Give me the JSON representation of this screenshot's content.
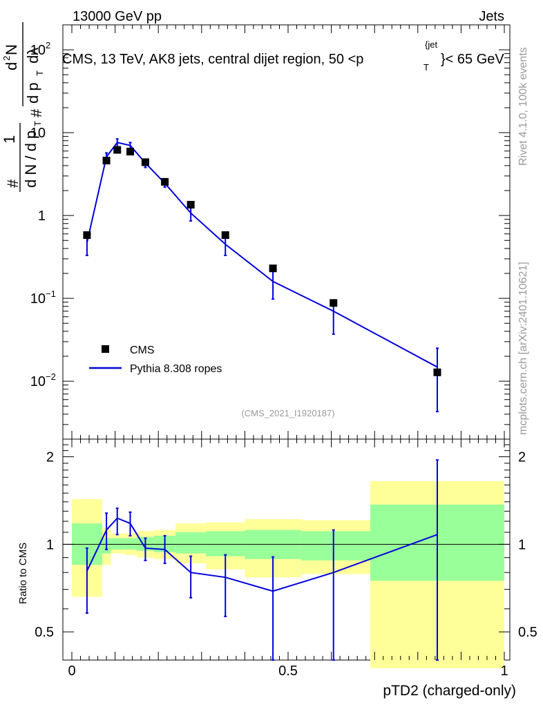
{
  "header": {
    "left": "13000 GeV pp",
    "right": "Jets"
  },
  "side": {
    "version": "Rivet 4.1.0,  100k events",
    "source": "mcplots.cern.ch [arXiv:2401.10621]"
  },
  "colors": {
    "data": "#000000",
    "mc": "#0000dd",
    "band_inner": "#99ff99",
    "band_outer": "#ffff99",
    "watermark": "#999999"
  },
  "chart_data": {
    "type": "line",
    "title": "CMS, 13 TeV, AK8 jets, central dijet region, 50 <p_T^{jet}< 65 GeV",
    "title_main": "CMS, 13 TeV, AK8 jets, central dijet region, 50 <p",
    "title_sub": "T",
    "title_sup": "{jet",
    "title_tail": "}< 65 GeV",
    "analysis": "(CMS_2021_I1920187)",
    "xlabel": "pTD2 (charged-only)",
    "ylabel": "# 1 / dN / dp_T # d^2N / dp_T dλ",
    "ylabel_parts": {
      "hash_left": "#",
      "one": "1",
      "den": "d N / d p",
      "t1": "T",
      "hash_right": "#",
      "num": "d",
      "two": "2",
      "n": "N",
      "den2": "d p",
      "t2": "T",
      "lam": "dλ"
    },
    "ratio_label": "Ratio to CMS",
    "xlim": [
      0,
      1
    ],
    "ylim_main": [
      0.002,
      200
    ],
    "ylim_ratio": [
      0.4,
      2.3
    ],
    "x_ticks": [
      {
        "v": 0,
        "label": "0"
      },
      {
        "v": 0.5,
        "label": "0.5"
      },
      {
        "v": 1,
        "label": "1"
      }
    ],
    "y_main_ticks": [
      {
        "v": 0.01,
        "label": "10",
        "exp": "−2"
      },
      {
        "v": 0.1,
        "label": "10",
        "exp": "−1"
      },
      {
        "v": 1,
        "label": "1",
        "exp": ""
      },
      {
        "v": 10,
        "label": "10",
        "exp": ""
      },
      {
        "v": 100,
        "label": "10",
        "exp": "2"
      }
    ],
    "y_ratio_ticks": [
      {
        "v": 0.5,
        "label": "0.5"
      },
      {
        "v": 1,
        "label": "1"
      },
      {
        "v": 2,
        "label": "2"
      }
    ],
    "legend": [
      {
        "name": "CMS",
        "marker": "square"
      },
      {
        "name": "Pythia 8.308 ropes",
        "marker": "line"
      }
    ],
    "bin_edges": [
      0,
      0.07,
      0.09,
      0.12,
      0.15,
      0.19,
      0.24,
      0.31,
      0.4,
      0.53,
      0.69,
      1.0
    ],
    "data": {
      "x": [
        0.035,
        0.08,
        0.105,
        0.135,
        0.17,
        0.215,
        0.275,
        0.355,
        0.465,
        0.605,
        0.845
      ],
      "y": [
        0.58,
        4.6,
        6.2,
        5.9,
        4.4,
        2.55,
        1.35,
        0.58,
        0.23,
        0.088,
        0.0128
      ]
    },
    "mc": {
      "x": [
        0.035,
        0.08,
        0.105,
        0.135,
        0.17,
        0.215,
        0.275,
        0.355,
        0.465,
        0.605,
        0.845
      ],
      "y": [
        0.47,
        5.1,
        7.6,
        7.0,
        4.3,
        2.45,
        1.07,
        0.45,
        0.16,
        0.07,
        0.0148
      ],
      "err_low": [
        0.33,
        4.4,
        6.6,
        6.2,
        3.8,
        2.2,
        0.86,
        0.33,
        0.098,
        0.037,
        0.0043
      ],
      "err_high": [
        0.58,
        5.7,
        8.4,
        7.6,
        4.7,
        2.75,
        1.28,
        0.57,
        0.22,
        0.095,
        0.025
      ]
    },
    "ratio": {
      "y": [
        0.81,
        1.12,
        1.23,
        1.18,
        0.97,
        0.96,
        0.8,
        0.77,
        0.69,
        0.8,
        1.08
      ],
      "err_low": [
        0.58,
        0.96,
        1.08,
        1.07,
        0.88,
        0.86,
        0.655,
        0.565,
        0.37,
        0.365,
        0.34
      ],
      "err_high": [
        0.97,
        1.28,
        1.33,
        1.29,
        1.05,
        1.07,
        0.91,
        0.92,
        0.905,
        1.12,
        1.95
      ]
    },
    "band_outer": {
      "low": [
        0.66,
        0.85,
        0.93,
        0.92,
        0.9,
        0.89,
        0.86,
        0.82,
        0.77,
        0.79,
        0.375
      ],
      "high": [
        1.43,
        1.14,
        1.09,
        1.09,
        1.11,
        1.12,
        1.18,
        1.19,
        1.22,
        1.21,
        1.65
      ]
    },
    "band_inner": {
      "low": [
        0.85,
        0.93,
        0.96,
        0.96,
        0.95,
        0.94,
        0.93,
        0.91,
        0.89,
        0.88,
        0.75
      ],
      "high": [
        1.18,
        1.05,
        1.05,
        1.05,
        1.06,
        1.07,
        1.1,
        1.11,
        1.12,
        1.11,
        1.37
      ]
    }
  }
}
